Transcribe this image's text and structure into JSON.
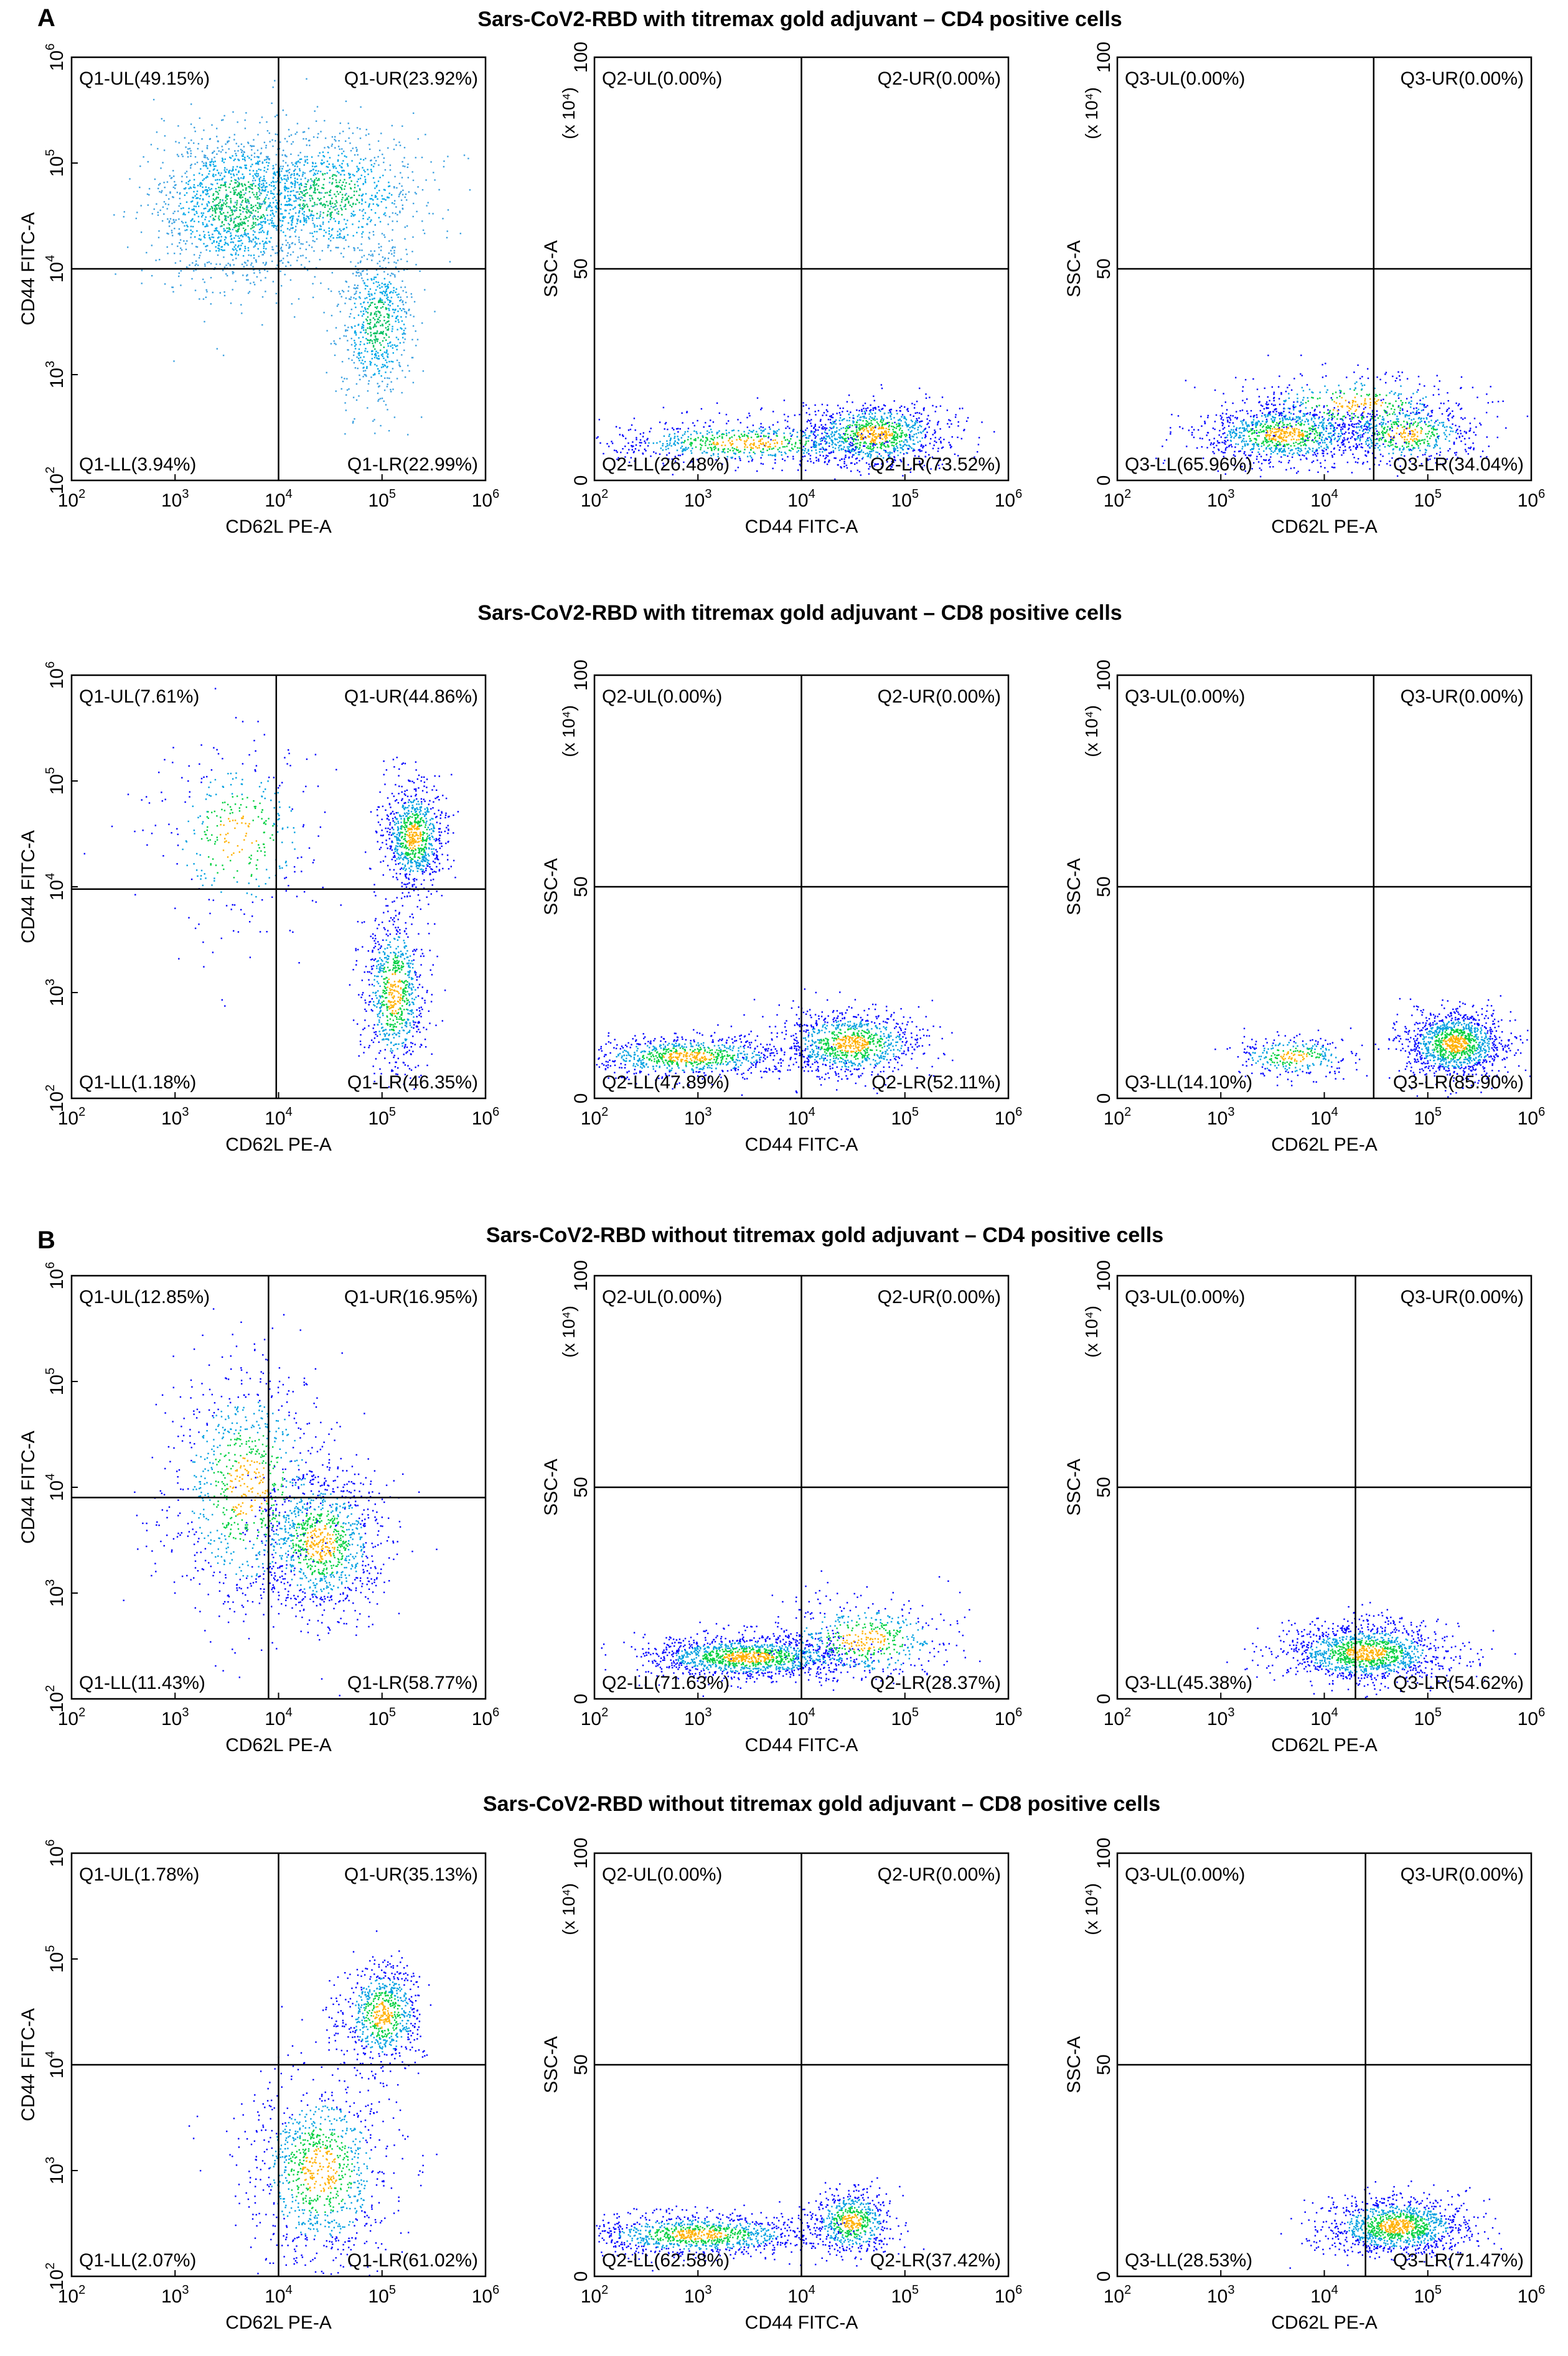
{
  "panel_letters": [
    "A",
    "B"
  ],
  "row_titles": [
    "Sars-CoV2-RBD with titremax gold adjuvant – CD4 positive cells",
    "Sars-CoV2-RBD with titremax gold adjuvant – CD8 positive cells",
    "Sars-CoV2-RBD without titremax gold adjuvant – CD4 positive cells",
    "Sars-CoV2-RBD without titremax gold adjuvant – CD8 positive cells"
  ],
  "colors": {
    "axis": "#000000",
    "dot_dense": "#00c060",
    "dot_sparse": "#0000ff",
    "dot_cyan": "#00a8e8"
  },
  "chart_data": [
    {
      "type": "scatter",
      "row": 0,
      "col": 0,
      "xlabel": "CD62L PE-A",
      "ylabel": "CD44 FITC-A",
      "xscale": "log",
      "yscale": "log",
      "xlim": [
        100,
        1000000
      ],
      "ylim": [
        100,
        1000000
      ],
      "xgate": 10000,
      "ygate": 10000,
      "quadrants": {
        "UL": "Q1-UL(49.15%)",
        "UR": "Q1-UR(23.92%)",
        "LL": "Q1-LL(3.94%)",
        "LR": "Q1-LR(22.99%)"
      },
      "clusters": [
        {
          "x": 4000,
          "y": 40000,
          "n": 2400,
          "sx": 0.4,
          "sy": 0.35
        },
        {
          "x": 30000,
          "y": 50000,
          "n": 1500,
          "sx": 0.45,
          "sy": 0.3
        },
        {
          "x": 90000,
          "y": 3000,
          "n": 1100,
          "sx": 0.18,
          "sy": 0.35
        }
      ],
      "palette": "cyan"
    },
    {
      "type": "scatter",
      "row": 0,
      "col": 1,
      "xlabel": "CD44 FITC-A",
      "ylabel": "SSC-A",
      "ymultiplier": "(x 10⁴)",
      "xscale": "log",
      "yscale": "linear",
      "xlim": [
        100,
        1000000
      ],
      "ylim": [
        0,
        100
      ],
      "xgate": 10000,
      "ygate": 50,
      "quadrants": {
        "UL": "Q2-UL(0.00%)",
        "UR": "Q2-UR(0.00%)",
        "LL": "Q2-LL(26.48%)",
        "LR": "Q2-LR(73.52%)"
      },
      "clusters": [
        {
          "x": 50000,
          "y": 11,
          "n": 1600,
          "sx": 0.35,
          "sy": 4
        },
        {
          "x": 3000,
          "y": 9,
          "n": 1200,
          "sx": 0.7,
          "sy": 2.5
        }
      ]
    },
    {
      "type": "scatter",
      "row": 0,
      "col": 2,
      "xlabel": "CD62L PE-A",
      "ylabel": "SSC-A",
      "ymultiplier": "(x 10⁴)",
      "xscale": "log",
      "yscale": "linear",
      "xlim": [
        100,
        1000000
      ],
      "ylim": [
        0,
        100
      ],
      "xgate": 30000,
      "ygate": 50,
      "quadrants": {
        "UL": "Q3-UL(0.00%)",
        "UR": "Q3-UR(0.00%)",
        "LL": "Q3-LL(65.96%)",
        "LR": "Q3-LR(34.04%)"
      },
      "clusters": [
        {
          "x": 4000,
          "y": 11,
          "n": 1600,
          "sx": 0.4,
          "sy": 3.5
        },
        {
          "x": 60000,
          "y": 11,
          "n": 900,
          "sx": 0.35,
          "sy": 3.5
        },
        {
          "x": 20000,
          "y": 18,
          "n": 700,
          "sx": 0.55,
          "sy": 4
        }
      ]
    },
    {
      "type": "scatter",
      "row": 1,
      "col": 0,
      "xlabel": "CD62L PE-A",
      "ylabel": "CD44 FITC-A",
      "xscale": "log",
      "yscale": "log",
      "xlim": [
        100,
        1000000
      ],
      "ylim": [
        100,
        1000000
      ],
      "xgate": 9500,
      "ygate": 9500,
      "quadrants": {
        "UL": "Q1-UL(7.61%)",
        "UR": "Q1-UR(44.86%)",
        "LL": "Q1-LL(1.18%)",
        "LR": "Q1-LR(46.35%)"
      },
      "clusters": [
        {
          "x": 200000,
          "y": 30000,
          "n": 1400,
          "sx": 0.15,
          "sy": 0.25
        },
        {
          "x": 130000,
          "y": 1000,
          "n": 1300,
          "sx": 0.15,
          "sy": 0.4
        },
        {
          "x": 4000,
          "y": 30000,
          "n": 600,
          "sx": 0.4,
          "sy": 0.45
        }
      ]
    },
    {
      "type": "scatter",
      "row": 1,
      "col": 1,
      "xlabel": "CD44 FITC-A",
      "ylabel": "SSC-A",
      "ymultiplier": "(x 10⁴)",
      "xscale": "log",
      "yscale": "linear",
      "xlim": [
        100,
        1000000
      ],
      "ylim": [
        0,
        100
      ],
      "xgate": 10000,
      "ygate": 50,
      "quadrants": {
        "UL": "Q2-UL(0.00%)",
        "UR": "Q2-UR(0.00%)",
        "LL": "Q2-LL(47.89%)",
        "LR": "Q2-LR(52.11%)"
      },
      "clusters": [
        {
          "x": 30000,
          "y": 13,
          "n": 1600,
          "sx": 0.35,
          "sy": 4
        },
        {
          "x": 800,
          "y": 10,
          "n": 1400,
          "sx": 0.5,
          "sy": 2.5
        }
      ]
    },
    {
      "type": "scatter",
      "row": 1,
      "col": 2,
      "xlabel": "CD62L PE-A",
      "ylabel": "SSC-A",
      "ymultiplier": "(x 10⁴)",
      "xscale": "log",
      "yscale": "linear",
      "xlim": [
        100,
        1000000
      ],
      "ylim": [
        0,
        100
      ],
      "xgate": 30000,
      "ygate": 50,
      "quadrants": {
        "UL": "Q3-UL(0.00%)",
        "UR": "Q3-UR(0.00%)",
        "LL": "Q3-LL(14.10%)",
        "LR": "Q3-LR(85.90%)"
      },
      "clusters": [
        {
          "x": 180000,
          "y": 13,
          "n": 2000,
          "sx": 0.25,
          "sy": 4
        },
        {
          "x": 5000,
          "y": 10,
          "n": 500,
          "sx": 0.3,
          "sy": 2.5
        }
      ]
    },
    {
      "type": "scatter",
      "row": 2,
      "col": 0,
      "xlabel": "CD62L PE-A",
      "ylabel": "CD44 FITC-A",
      "xscale": "log",
      "yscale": "log",
      "xlim": [
        100,
        1000000
      ],
      "ylim": [
        100,
        1000000
      ],
      "xgate": 8000,
      "ygate": 8000,
      "quadrants": {
        "UL": "Q1-UL(12.85%)",
        "UR": "Q1-UR(16.95%)",
        "LL": "Q1-LL(11.43%)",
        "LR": "Q1-LR(58.77%)"
      },
      "clusters": [
        {
          "x": 25000,
          "y": 3000,
          "n": 1800,
          "sx": 0.3,
          "sy": 0.35
        },
        {
          "x": 5000,
          "y": 10000,
          "n": 1500,
          "sx": 0.4,
          "sy": 0.6
        }
      ]
    },
    {
      "type": "scatter",
      "row": 2,
      "col": 1,
      "xlabel": "CD44 FITC-A",
      "ylabel": "SSC-A",
      "ymultiplier": "(x 10⁴)",
      "xscale": "log",
      "yscale": "linear",
      "xlim": [
        100,
        1000000
      ],
      "ylim": [
        0,
        100
      ],
      "xgate": 10000,
      "ygate": 50,
      "quadrants": {
        "UL": "Q2-UL(0.00%)",
        "UR": "Q2-UR(0.00%)",
        "LL": "Q2-LL(71.63%)",
        "LR": "Q2-LR(28.37%)"
      },
      "clusters": [
        {
          "x": 3000,
          "y": 10,
          "n": 2200,
          "sx": 0.5,
          "sy": 2.5
        },
        {
          "x": 40000,
          "y": 14,
          "n": 900,
          "sx": 0.45,
          "sy": 5
        }
      ]
    },
    {
      "type": "scatter",
      "row": 2,
      "col": 2,
      "xlabel": "CD62L PE-A",
      "ylabel": "SSC-A",
      "ymultiplier": "(x 10⁴)",
      "xscale": "log",
      "yscale": "linear",
      "xlim": [
        100,
        1000000
      ],
      "ylim": [
        0,
        100
      ],
      "xgate": 20000,
      "ygate": 50,
      "quadrants": {
        "UL": "Q3-UL(0.00%)",
        "UR": "Q3-UR(0.00%)",
        "LL": "Q3-LL(45.38%)",
        "LR": "Q3-LR(54.62%)"
      },
      "clusters": [
        {
          "x": 25000,
          "y": 11,
          "n": 2200,
          "sx": 0.4,
          "sy": 3.5
        }
      ]
    },
    {
      "type": "scatter",
      "row": 3,
      "col": 0,
      "xlabel": "CD62L PE-A",
      "ylabel": "CD44 FITC-A",
      "xscale": "log",
      "yscale": "log",
      "xlim": [
        100,
        1000000
      ],
      "ylim": [
        100,
        1000000
      ],
      "xgate": 10000,
      "ygate": 10000,
      "quadrants": {
        "UL": "Q1-UL(1.78%)",
        "UR": "Q1-UR(35.13%)",
        "LL": "Q1-LL(2.07%)",
        "LR": "Q1-LR(61.02%)"
      },
      "clusters": [
        {
          "x": 100000,
          "y": 30000,
          "n": 1200,
          "sx": 0.2,
          "sy": 0.25
        },
        {
          "x": 25000,
          "y": 1000,
          "n": 1700,
          "sx": 0.35,
          "sy": 0.45
        }
      ]
    },
    {
      "type": "scatter",
      "row": 3,
      "col": 1,
      "xlabel": "CD44 FITC-A",
      "ylabel": "SSC-A",
      "ymultiplier": "(x 10⁴)",
      "xscale": "log",
      "yscale": "linear",
      "xlim": [
        100,
        1000000
      ],
      "ylim": [
        0,
        100
      ],
      "xgate": 10000,
      "ygate": 50,
      "quadrants": {
        "UL": "Q2-UL(0.00%)",
        "UR": "Q2-UR(0.00%)",
        "LL": "Q2-LL(62.58%)",
        "LR": "Q2-LR(37.42%)"
      },
      "clusters": [
        {
          "x": 30000,
          "y": 13,
          "n": 1000,
          "sx": 0.2,
          "sy": 4
        },
        {
          "x": 1000,
          "y": 10,
          "n": 1800,
          "sx": 0.55,
          "sy": 2.5
        }
      ]
    },
    {
      "type": "scatter",
      "row": 3,
      "col": 2,
      "xlabel": "CD62L PE-A",
      "ylabel": "SSC-A",
      "ymultiplier": "(x 10⁴)",
      "xscale": "log",
      "yscale": "linear",
      "xlim": [
        100,
        1000000
      ],
      "ylim": [
        0,
        100
      ],
      "xgate": 25000,
      "ygate": 50,
      "quadrants": {
        "UL": "Q3-UL(0.00%)",
        "UR": "Q3-UR(0.00%)",
        "LL": "Q3-LL(28.53%)",
        "LR": "Q3-LR(71.47%)"
      },
      "clusters": [
        {
          "x": 50000,
          "y": 12,
          "n": 2000,
          "sx": 0.35,
          "sy": 3.5
        }
      ]
    }
  ]
}
